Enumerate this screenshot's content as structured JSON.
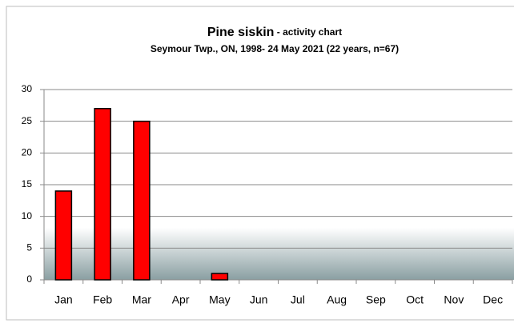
{
  "chart_data": {
    "type": "bar",
    "title": "Pine siskin",
    "title_note": "- activity chart",
    "subtitle": "Seymour Twp., ON, 1998- 24 May 2021 (22 years, n=67)",
    "categories": [
      "Jan",
      "Feb",
      "Mar",
      "Apr",
      "May",
      "Jun",
      "Jul",
      "Aug",
      "Sep",
      "Oct",
      "Nov",
      "Dec"
    ],
    "values": [
      14,
      27,
      25,
      0,
      1,
      0,
      0,
      0,
      0,
      0,
      0,
      0
    ],
    "color": "#ff0000",
    "ylim": [
      0,
      30
    ],
    "yticks": [
      0,
      5,
      10,
      15,
      20,
      25,
      30
    ],
    "grid": true
  }
}
